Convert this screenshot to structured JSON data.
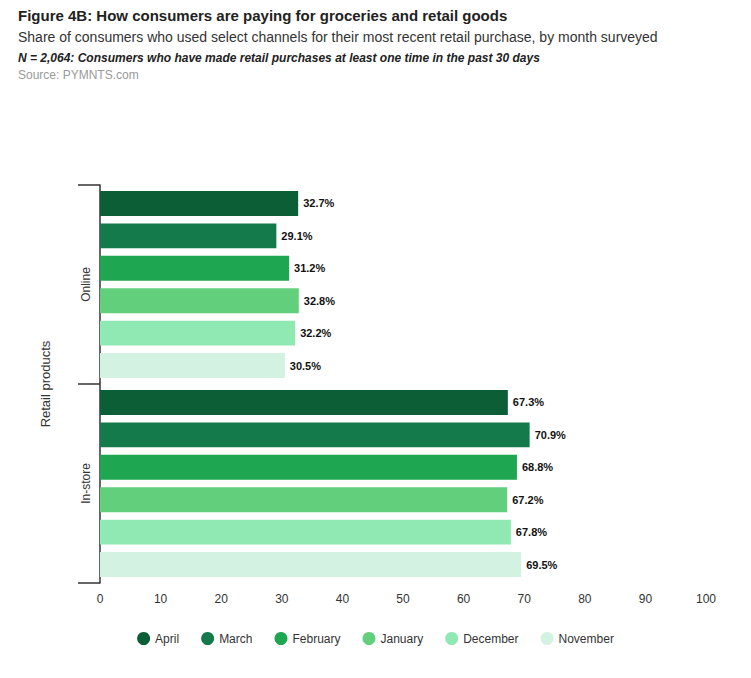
{
  "chart_data": {
    "type": "bar",
    "title": "Figure 4B: How consumers are paying for groceries and retail goods",
    "subtitle": "Share of consumers who used select channels for their most recent retail purchase, by month surveyed",
    "note": "N = 2,064: Consumers who have made retail purchases at least one time in the past 30 days",
    "source": "Source: PYMNTS.com",
    "orientation": "horizontal",
    "ylabel": "Retail products",
    "categories": [
      "Online",
      "In-store"
    ],
    "series": [
      {
        "name": "April",
        "color": "#0b5e35",
        "values": [
          32.7,
          67.3
        ],
        "value_labels": [
          "32.7%",
          "67.3%"
        ]
      },
      {
        "name": "March",
        "color": "#147a4c",
        "values": [
          29.1,
          70.9
        ],
        "value_labels": [
          "29.1%",
          "70.9%"
        ]
      },
      {
        "name": "February",
        "color": "#1fa650",
        "values": [
          31.2,
          68.8
        ],
        "value_labels": [
          "31.2%",
          "68.8%"
        ]
      },
      {
        "name": "January",
        "color": "#62cf7c",
        "values": [
          32.8,
          67.2
        ],
        "value_labels": [
          "32.8%",
          "67.2%"
        ]
      },
      {
        "name": "December",
        "color": "#90e8b3",
        "values": [
          32.2,
          67.8
        ],
        "value_labels": [
          "32.2%",
          "67.8%"
        ]
      },
      {
        "name": "November",
        "color": "#d3f2e1",
        "values": [
          30.5,
          69.5
        ],
        "value_labels": [
          "30.5%",
          "69.5%"
        ]
      }
    ],
    "xlim": [
      0,
      100
    ],
    "xticks": [
      0,
      10,
      20,
      30,
      40,
      50,
      60,
      70,
      80,
      90,
      100
    ],
    "grid": false,
    "legend": "bottom",
    "data_labels": true
  }
}
